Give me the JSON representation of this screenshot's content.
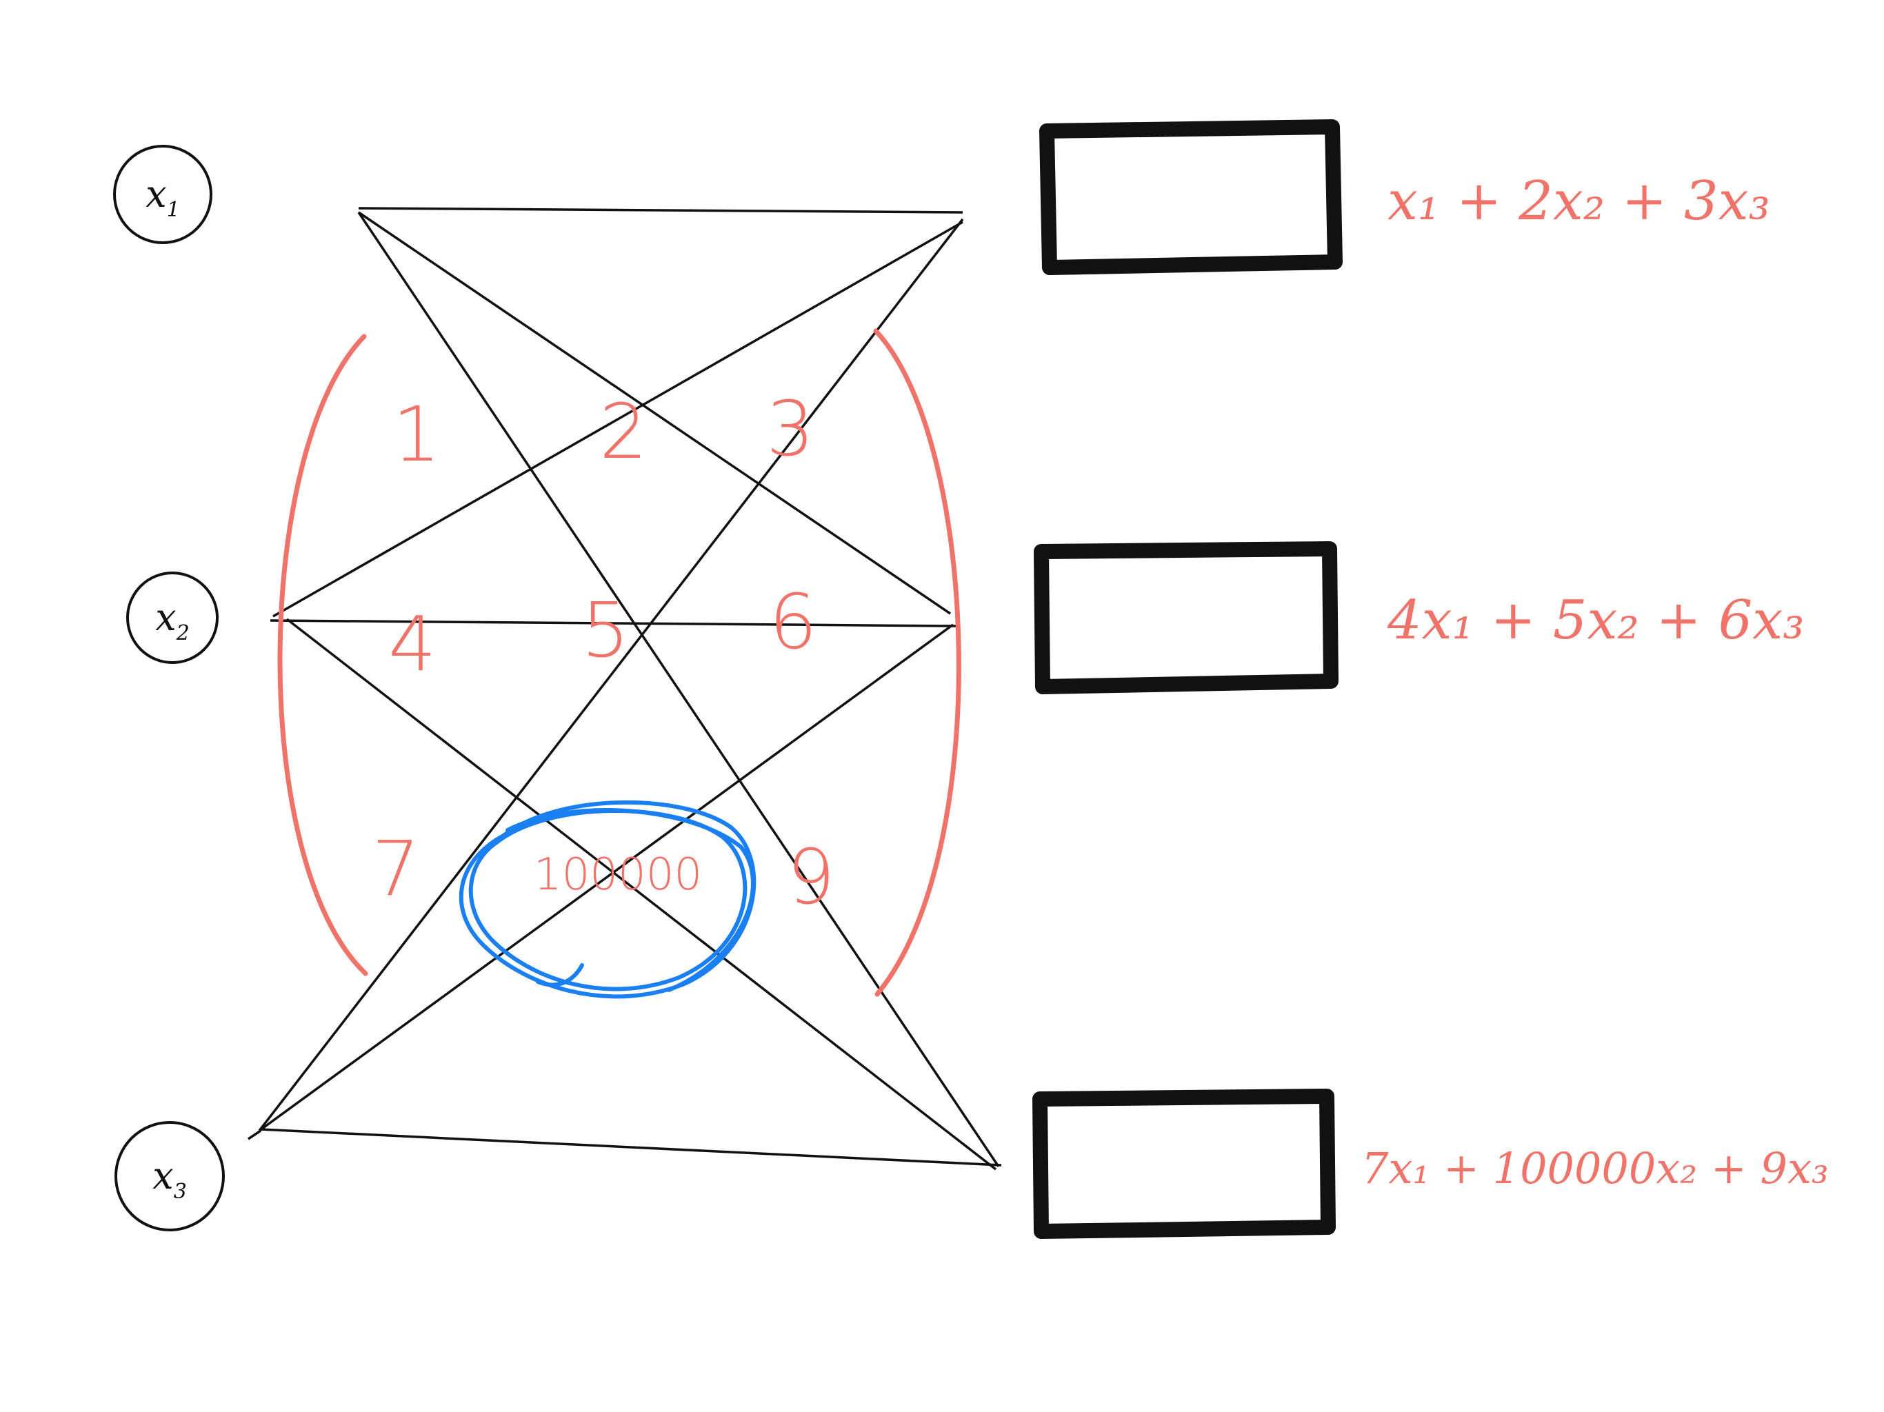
{
  "colors": {
    "ink": "#111111",
    "accent": "#f0736a",
    "highlight": "#1a7ff0"
  },
  "inputs": [
    {
      "var": "x",
      "sub": "1"
    },
    {
      "var": "x",
      "sub": "2"
    },
    {
      "var": "x",
      "sub": "3"
    }
  ],
  "weights": {
    "w11": "1",
    "w12": "2",
    "w13": "3",
    "w21": "4",
    "w22": "5",
    "w23": "6",
    "w31": "7",
    "w32": "100000",
    "w33": "9"
  },
  "outputs": [
    {
      "expr": "x₁ + 2x₂ + 3x₃"
    },
    {
      "expr": "4x₁ + 5x₂ + 6x₃"
    },
    {
      "expr": "7x₁ + 100000x₂ + 9x₃"
    }
  ]
}
